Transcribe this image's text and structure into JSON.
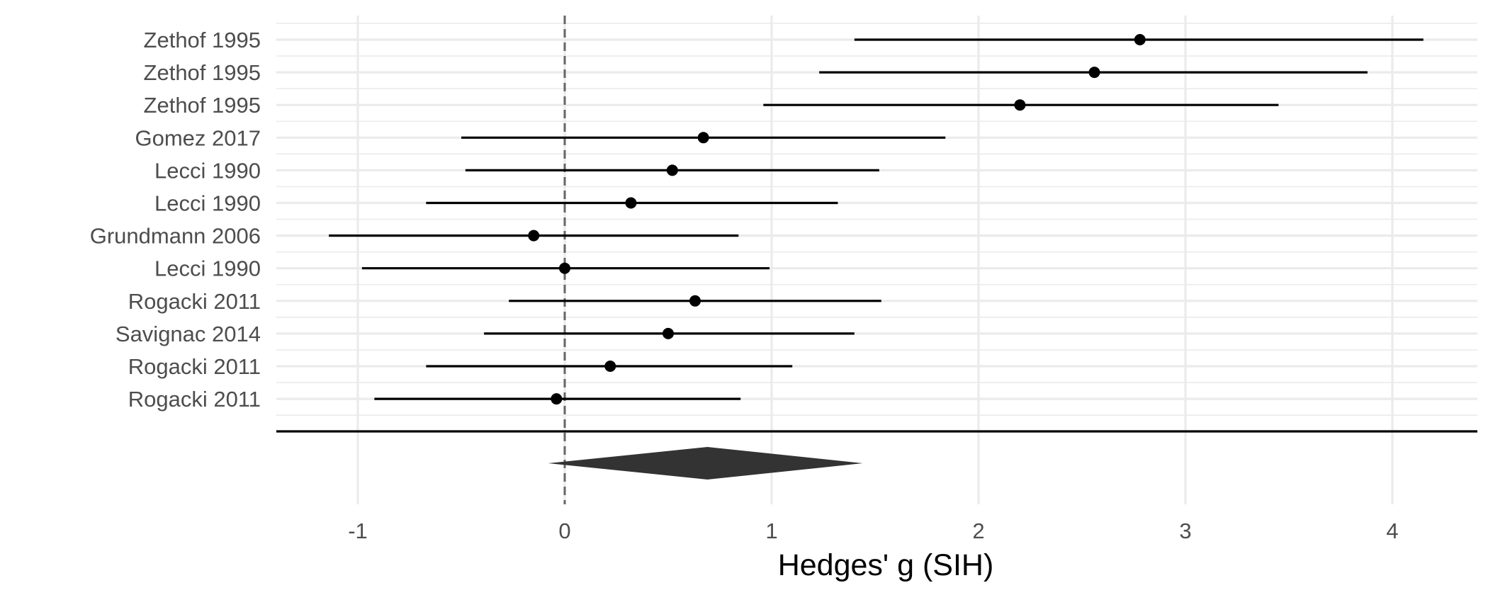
{
  "chart_data": {
    "type": "forest",
    "xlabel": "Hedges' g (SIH)",
    "xlim": [
      -1.35,
      4.4
    ],
    "x_ticks": [
      -1,
      0,
      1,
      2,
      3,
      4
    ],
    "x_tick_labels": [
      "-1",
      "0",
      "1",
      "2",
      "3",
      "4"
    ],
    "reference_line": 0,
    "grid": true,
    "studies": [
      {
        "label": "Zethof 1995",
        "estimate": 2.78,
        "lower": 1.4,
        "upper": 4.15
      },
      {
        "label": "Zethof 1995",
        "estimate": 2.56,
        "lower": 1.23,
        "upper": 3.88
      },
      {
        "label": "Zethof 1995",
        "estimate": 2.2,
        "lower": 0.96,
        "upper": 3.45
      },
      {
        "label": "Gomez 2017",
        "estimate": 0.67,
        "lower": -0.5,
        "upper": 1.84
      },
      {
        "label": "Lecci 1990",
        "estimate": 0.52,
        "lower": -0.48,
        "upper": 1.52
      },
      {
        "label": "Lecci 1990",
        "estimate": 0.32,
        "lower": -0.67,
        "upper": 1.32
      },
      {
        "label": "Grundmann 2006",
        "estimate": -0.15,
        "lower": -1.14,
        "upper": 0.84
      },
      {
        "label": "Lecci 1990",
        "estimate": 0.0,
        "lower": -0.98,
        "upper": 0.99
      },
      {
        "label": "Rogacki 2011",
        "estimate": 0.63,
        "lower": -0.27,
        "upper": 1.53
      },
      {
        "label": "Savignac 2014",
        "estimate": 0.5,
        "lower": -0.39,
        "upper": 1.4
      },
      {
        "label": "Rogacki 2011",
        "estimate": 0.22,
        "lower": -0.67,
        "upper": 1.1
      },
      {
        "label": "Rogacki 2011",
        "estimate": -0.04,
        "lower": -0.92,
        "upper": 0.85
      }
    ],
    "summary": {
      "estimate": 0.69,
      "lower": -0.08,
      "upper": 1.44
    },
    "colors": {
      "point": "#000000",
      "ci": "#000000",
      "diamond": "#333333",
      "grid": "#ebebeb",
      "reference": "#666666"
    }
  }
}
